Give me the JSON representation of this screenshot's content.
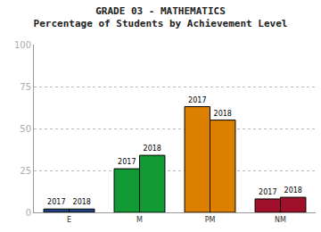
{
  "chart_data": {
    "type": "bar",
    "title": "GRADE 03 - MATHEMATICS",
    "subtitle": "Percentage of Students by Achievement Level",
    "categories": [
      "E",
      "M",
      "PM",
      "NM"
    ],
    "series": [
      {
        "name": "2017",
        "colors": [
          "#1f3f80",
          "#119933",
          "#dd8000",
          "#a0102a"
        ],
        "values": [
          2,
          26,
          63,
          8
        ]
      },
      {
        "name": "2018",
        "colors": [
          "#1f3f80",
          "#119933",
          "#dd8000",
          "#a0102a"
        ],
        "values": [
          2,
          34,
          55,
          9
        ]
      }
    ],
    "ylim": [
      0,
      100
    ],
    "yticks": [
      0,
      25,
      50,
      75,
      100
    ],
    "grid": true
  }
}
